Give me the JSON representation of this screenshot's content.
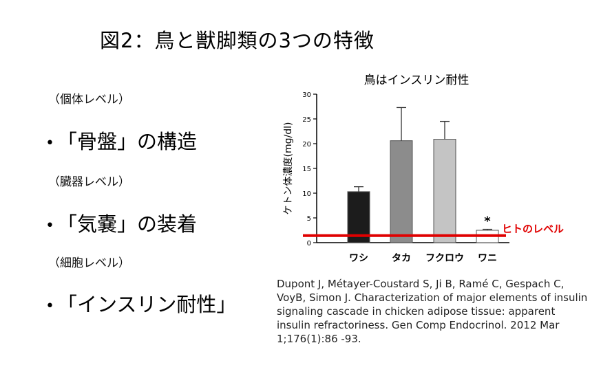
{
  "slide": {
    "title": "図2：鳥と獣脚類の3つの特徴",
    "level_labels": [
      "（個体レベル）",
      "（臓器レベル）",
      "（細胞レベル）"
    ],
    "bullets": [
      "「骨盤」の構造",
      "「気嚢」の装着",
      "「インスリン耐性」"
    ],
    "bullet_symbol": "•",
    "citation": "Dupont J, Métayer-Coustard S, Ji B, Ramé C, Gespach C, VoyB, Simon J. Characterization of major elements of insulin signaling cascade in chicken adipose tissue: apparent insulin refractoriness. Gen Comp Endocrinol. 2012 Mar 1;176(1):86 -93."
  },
  "chart_data": {
    "type": "bar",
    "title": "鳥はインスリン耐性",
    "ylabel": "ケトン体濃度(mg/dl)",
    "xlabel": "",
    "categories": [
      "ワシ",
      "タカ",
      "フクロウ",
      "ワニ"
    ],
    "values": [
      10.3,
      20.6,
      20.9,
      2.5
    ],
    "errors": [
      1.0,
      6.7,
      3.6,
      0.2
    ],
    "bar_colors": [
      "#1c1c1c",
      "#8c8c8c",
      "#c4c4c4",
      "#ffffff"
    ],
    "ylim": [
      0,
      30
    ],
    "yticks": [
      0,
      5,
      10,
      15,
      20,
      25,
      30
    ],
    "significance": {
      "category": "ワニ",
      "mark": "*"
    },
    "reference_line": {
      "label": "ヒトのレベル",
      "value": 1.0,
      "color": "#e00000"
    },
    "grid": false
  }
}
